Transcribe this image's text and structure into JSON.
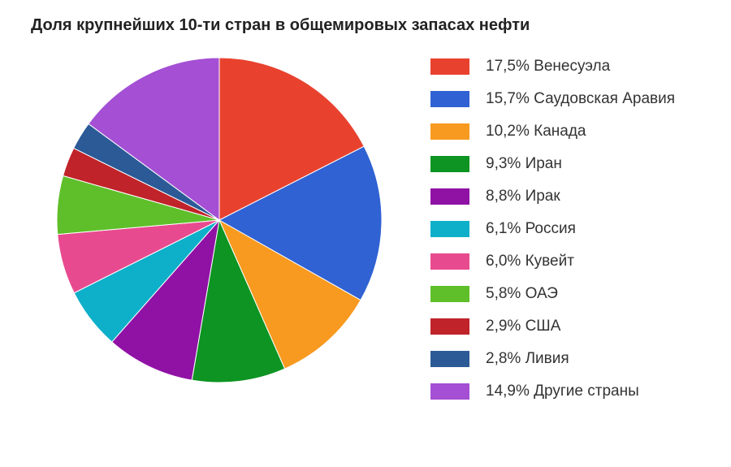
{
  "chart": {
    "type": "pie",
    "title": "Доля крупнейших 10-ти стран в общемировых запасах нефти",
    "title_fontsize": 20,
    "title_fontweight": "bold",
    "title_color": "#222222",
    "background_color": "#ffffff",
    "pie_diameter": 420,
    "start_angle_deg": -90,
    "direction": "clockwise",
    "slice_stroke": "#ffffff",
    "slice_stroke_width": 1,
    "legend_fontsize": 19,
    "legend_text_color": "#333333",
    "legend_swatch_width": 48,
    "legend_swatch_height": 20,
    "legend_gap": 18,
    "slices": [
      {
        "label": "Венесуэла",
        "value": 17.5,
        "display": "17,5%",
        "color": "#e8422f"
      },
      {
        "label": "Саудовская Аравия",
        "value": 15.7,
        "display": "15,7%",
        "color": "#3062d3"
      },
      {
        "label": "Канада",
        "value": 10.2,
        "display": "10,2%",
        "color": "#f79a1f"
      },
      {
        "label": "Иран",
        "value": 9.3,
        "display": "9,3%",
        "color": "#0d9422"
      },
      {
        "label": "Ирак",
        "value": 8.8,
        "display": "8,8%",
        "color": "#9012a5"
      },
      {
        "label": "Россия",
        "value": 6.1,
        "display": "6,1%",
        "color": "#0eb0c9"
      },
      {
        "label": "Кувейт",
        "value": 6.0,
        "display": "6,0%",
        "color": "#e84a8f"
      },
      {
        "label": "ОАЭ",
        "value": 5.8,
        "display": "5,8%",
        "color": "#5fbf2a"
      },
      {
        "label": "США",
        "value": 2.9,
        "display": "2,9%",
        "color": "#c0232a"
      },
      {
        "label": "Ливия",
        "value": 2.8,
        "display": "2,8%",
        "color": "#2b5a96"
      },
      {
        "label": "Другие страны",
        "value": 14.9,
        "display": "14,9%",
        "color": "#a44fd4"
      }
    ]
  }
}
